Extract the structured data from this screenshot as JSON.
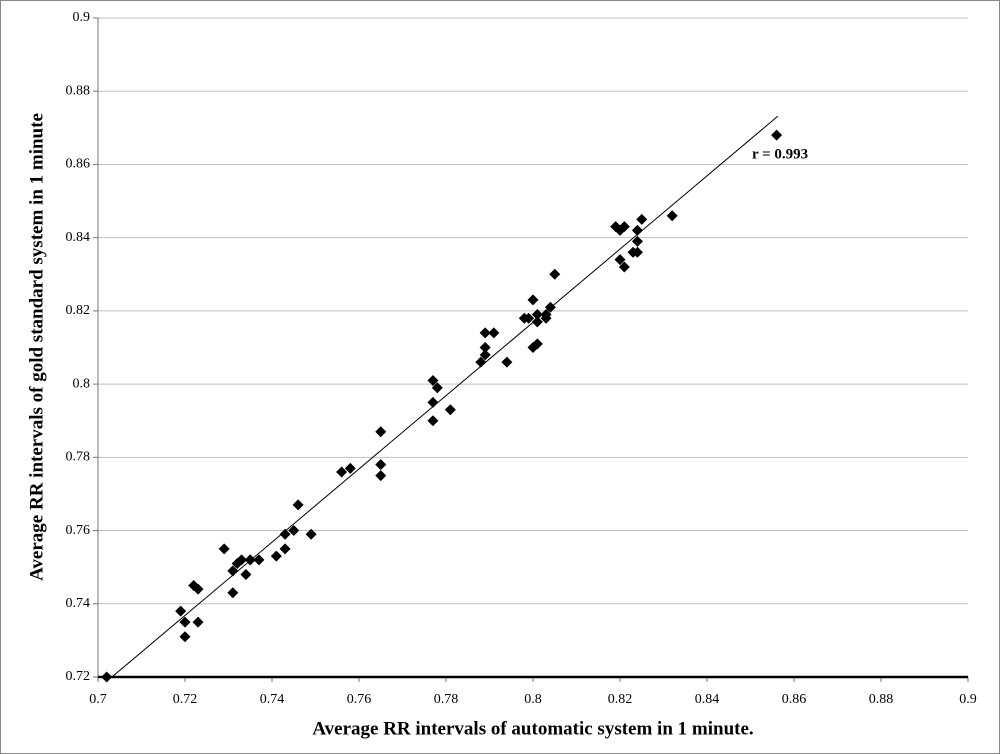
{
  "chart_data": {
    "type": "scatter",
    "x_label": "Average RR intervals of automatic system  in 1 minute.",
    "y_label": "Average RR intervals of gold standard  system  in 1 minute",
    "annotation": "r = 0.993",
    "xlim": [
      0.7,
      0.9
    ],
    "ylim": [
      0.72,
      0.9
    ],
    "xticks": [
      0.7,
      0.72,
      0.74,
      0.76,
      0.78,
      0.8,
      0.82,
      0.84,
      0.86,
      0.88,
      0.9
    ],
    "yticks": [
      0.72,
      0.74,
      0.76,
      0.78,
      0.8,
      0.82,
      0.84,
      0.86,
      0.88,
      0.9
    ],
    "grid": true,
    "color": "#000000",
    "x": [
      0.702,
      0.719,
      0.72,
      0.72,
      0.722,
      0.723,
      0.723,
      0.729,
      0.731,
      0.731,
      0.732,
      0.733,
      0.734,
      0.735,
      0.735,
      0.737,
      0.741,
      0.743,
      0.743,
      0.745,
      0.746,
      0.749,
      0.756,
      0.758,
      0.765,
      0.765,
      0.765,
      0.777,
      0.778,
      0.777,
      0.777,
      0.781,
      0.788,
      0.789,
      0.789,
      0.789,
      0.791,
      0.794,
      0.798,
      0.8,
      0.799,
      0.801,
      0.801,
      0.8,
      0.801,
      0.803,
      0.803,
      0.804,
      0.805,
      0.819,
      0.82,
      0.821,
      0.82,
      0.821,
      0.823,
      0.824,
      0.824,
      0.824,
      0.825,
      0.832,
      0.856
    ],
    "values": [
      0.72,
      0.738,
      0.735,
      0.731,
      0.745,
      0.744,
      0.735,
      0.755,
      0.743,
      0.749,
      0.751,
      0.752,
      0.748,
      0.752,
      0.752,
      0.752,
      0.753,
      0.755,
      0.759,
      0.76,
      0.767,
      0.759,
      0.776,
      0.777,
      0.778,
      0.787,
      0.775,
      0.801,
      0.799,
      0.795,
      0.79,
      0.793,
      0.806,
      0.808,
      0.81,
      0.814,
      0.814,
      0.806,
      0.818,
      0.823,
      0.818,
      0.817,
      0.819,
      0.81,
      0.811,
      0.818,
      0.819,
      0.821,
      0.83,
      0.843,
      0.842,
      0.843,
      0.834,
      0.832,
      0.836,
      0.836,
      0.839,
      0.842,
      0.845,
      0.846,
      0.868
    ],
    "trendline": {
      "x": [
        0.7032,
        0.8563
      ],
      "y": [
        0.72,
        0.8732
      ]
    }
  }
}
